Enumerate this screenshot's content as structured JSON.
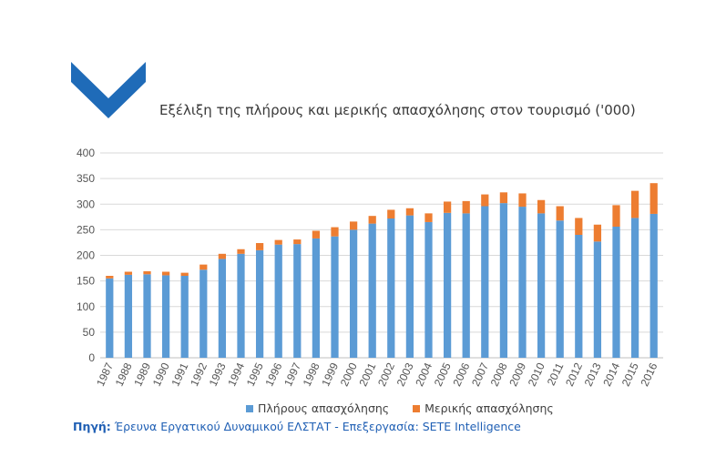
{
  "brand": {
    "logo_color": "#1f6bb8",
    "logo_icon": "chevron-down-icon"
  },
  "title": "Εξέλιξη της πλήρους και μερικής απασχόλησης στον τουρισμό ('000)",
  "source": {
    "label": "Πηγή:",
    "text": "Έρευνα Εργατικού Δυναμικού ΕΛΣΤΑΤ - Επεξεργασία: SETE Intelligence"
  },
  "chart_data": {
    "type": "bar",
    "stacked": true,
    "categories": [
      "1987",
      "1988",
      "1989",
      "1990",
      "1991",
      "1992",
      "1993",
      "1994",
      "1995",
      "1996",
      "1997",
      "1998",
      "1999",
      "2000",
      "2001",
      "2002",
      "2003",
      "2004",
      "2005",
      "2006",
      "2007",
      "2008",
      "2009",
      "2010",
      "2011",
      "2012",
      "2013",
      "2014",
      "2015",
      "2016"
    ],
    "series": [
      {
        "name": "Πλήρους απασχόλησης",
        "color": "#5b9bd5",
        "values": [
          155,
          162,
          163,
          161,
          160,
          172,
          193,
          203,
          210,
          221,
          222,
          233,
          237,
          250,
          262,
          272,
          278,
          265,
          283,
          282,
          296,
          302,
          295,
          282,
          268,
          240,
          227,
          256,
          273,
          281
        ]
      },
      {
        "name": "Μερικής απασχόλησης",
        "color": "#ed7d31",
        "values": [
          5,
          6,
          6,
          7,
          6,
          10,
          10,
          9,
          14,
          9,
          9,
          15,
          18,
          16,
          15,
          17,
          14,
          17,
          22,
          24,
          23,
          21,
          26,
          26,
          28,
          33,
          33,
          42,
          53,
          60
        ]
      }
    ],
    "ylim": [
      0,
      400
    ],
    "yticks": [
      0,
      50,
      100,
      150,
      200,
      250,
      300,
      350,
      400
    ],
    "grid": true,
    "legend_position": "bottom"
  }
}
